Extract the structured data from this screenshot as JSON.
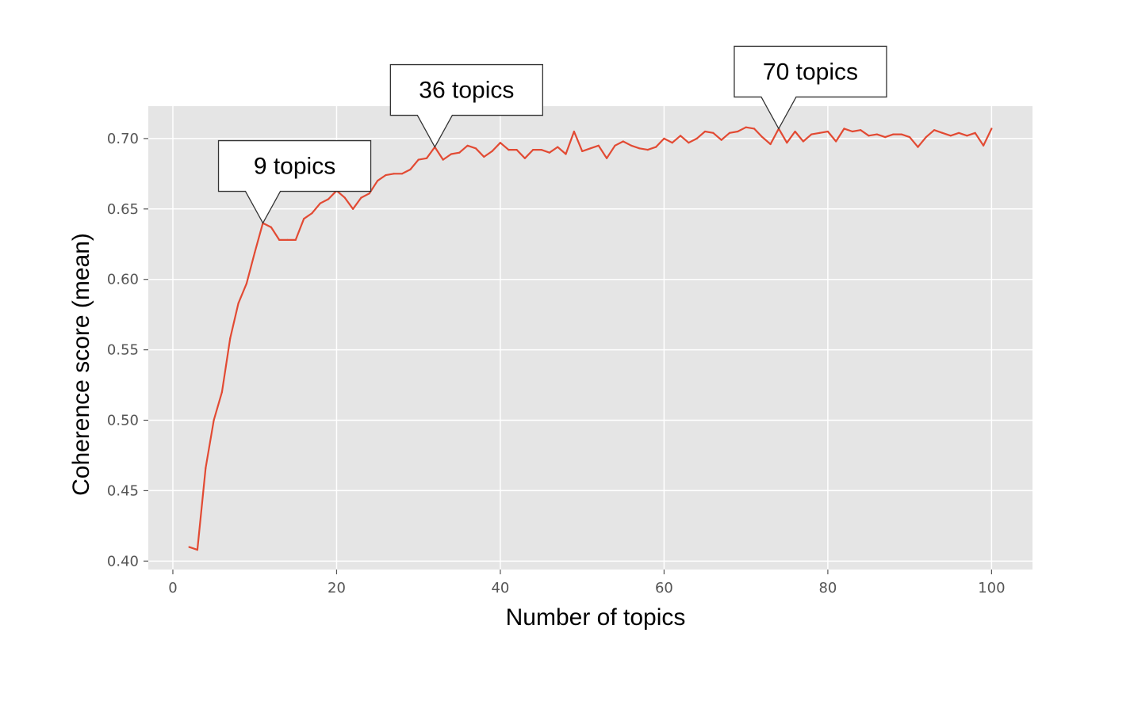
{
  "chart_data": {
    "type": "line",
    "xlabel": "Number of topics",
    "ylabel": "Coherence score (mean)",
    "xlim": [
      -3,
      105
    ],
    "ylim": [
      0.394,
      0.723
    ],
    "xticks": [
      0,
      20,
      40,
      60,
      80,
      100
    ],
    "yticks": [
      0.4,
      0.45,
      0.5,
      0.55,
      0.6,
      0.65,
      0.7
    ],
    "xtick_labels": [
      "0",
      "20",
      "40",
      "60",
      "80",
      "100"
    ],
    "ytick_labels": [
      "0.40",
      "0.45",
      "0.50",
      "0.55",
      "0.60",
      "0.65",
      "0.70"
    ],
    "grid": true,
    "background": "#e5e5e5",
    "line_color": "#e24a33",
    "series": [
      {
        "x": [
          2,
          3,
          4,
          5,
          6,
          7,
          8,
          9,
          10,
          11,
          12,
          13,
          14,
          15,
          16,
          17,
          18,
          19,
          20,
          21,
          22,
          23,
          24,
          25,
          26,
          27,
          28,
          29,
          30,
          31,
          32,
          33,
          34,
          35,
          36,
          37,
          38,
          39,
          40,
          41,
          42,
          43,
          44,
          45,
          46,
          47,
          48,
          49,
          50,
          51,
          52,
          53,
          54,
          55,
          56,
          57,
          58,
          59,
          60,
          61,
          62,
          63,
          64,
          65,
          66,
          67,
          68,
          69,
          70,
          71,
          72,
          73,
          74,
          75,
          76,
          77,
          78,
          79,
          80,
          81,
          82,
          83,
          84,
          85,
          86,
          87,
          88,
          89,
          90,
          91,
          92,
          93,
          94,
          95,
          96,
          97,
          98,
          99,
          100
        ],
        "values": [
          0.41,
          0.408,
          0.466,
          0.5,
          0.52,
          0.558,
          0.583,
          0.597,
          0.619,
          0.64,
          0.637,
          0.628,
          0.628,
          0.628,
          0.643,
          0.647,
          0.654,
          0.657,
          0.663,
          0.658,
          0.65,
          0.658,
          0.661,
          0.67,
          0.674,
          0.675,
          0.675,
          0.678,
          0.685,
          0.686,
          0.694,
          0.685,
          0.689,
          0.69,
          0.695,
          0.693,
          0.687,
          0.691,
          0.697,
          0.692,
          0.692,
          0.686,
          0.692,
          0.692,
          0.69,
          0.694,
          0.689,
          0.705,
          0.691,
          0.693,
          0.695,
          0.686,
          0.695,
          0.698,
          0.695,
          0.693,
          0.692,
          0.694,
          0.7,
          0.697,
          0.702,
          0.697,
          0.7,
          0.705,
          0.704,
          0.699,
          0.704,
          0.705,
          0.708,
          0.707,
          0.701,
          0.696,
          0.707,
          0.697,
          0.705,
          0.698,
          0.703,
          0.704,
          0.705,
          0.698,
          0.707,
          0.705,
          0.706,
          0.702,
          0.703,
          0.701,
          0.703,
          0.703,
          0.701,
          0.694,
          0.701,
          0.706,
          0.704,
          0.702,
          0.704,
          0.702,
          0.704,
          0.695,
          0.707
        ]
      }
    ],
    "annotations": [
      {
        "text": "9 topics",
        "x": 11,
        "y": 0.64
      },
      {
        "text": "36 topics",
        "x": 32,
        "y": 0.694
      },
      {
        "text": "70 topics",
        "x": 74,
        "y": 0.707
      }
    ]
  }
}
